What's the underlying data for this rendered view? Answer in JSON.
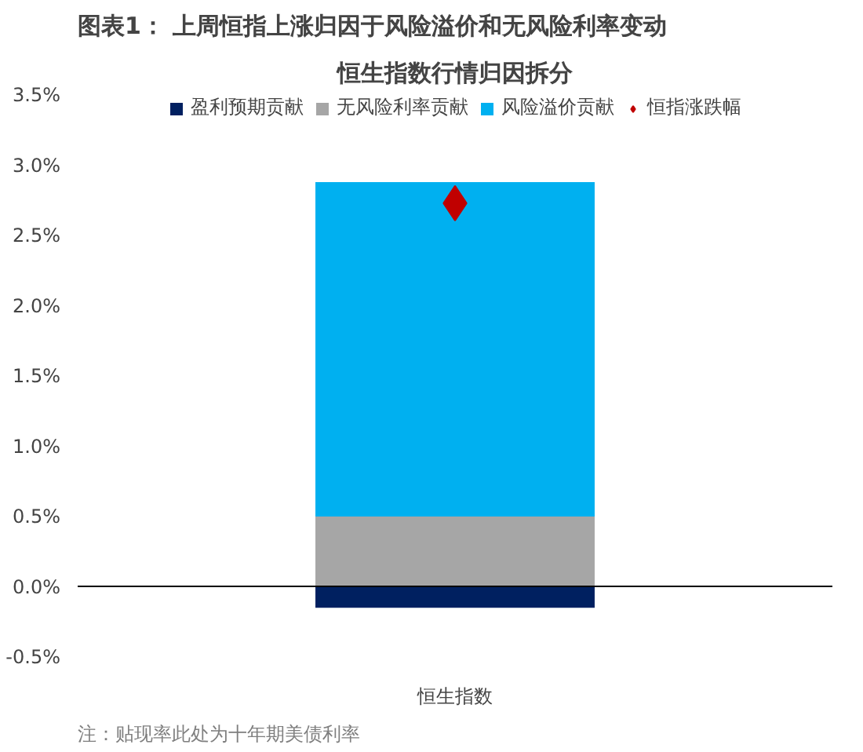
{
  "chart_data": {
    "type": "bar",
    "title": "图表1： 上周恒指上涨归因于风险溢价和无风险利率变动",
    "subtitle": "恒生指数行情归因拆分",
    "categories": [
      "恒生指数"
    ],
    "stacked": true,
    "series": [
      {
        "name": "盈利预期贡献",
        "color": "#002060",
        "values": [
          -0.15
        ]
      },
      {
        "name": "无风险利率贡献",
        "color": "#a6a6a6",
        "values": [
          0.5
        ]
      },
      {
        "name": "风险溢价贡献",
        "color": "#00b0f0",
        "values": [
          2.38
        ]
      },
      {
        "name": "恒指涨跌幅",
        "color": "#c00000",
        "type": "scatter",
        "x": [
          "恒生指数"
        ],
        "values": [
          2.73
        ]
      }
    ],
    "marker": "diamond",
    "ylim": [
      -0.5,
      3.5
    ],
    "yticks": [
      {
        "value": -0.5,
        "label": "-0.5%"
      },
      {
        "value": 0,
        "label": "0.0%"
      },
      {
        "value": 0.5,
        "label": "0.5%"
      },
      {
        "value": 1,
        "label": "1.0%"
      },
      {
        "value": 1.5,
        "label": "1.5%"
      },
      {
        "value": 2,
        "label": "2.0%"
      },
      {
        "value": 2.5,
        "label": "2.5%"
      },
      {
        "value": 3,
        "label": "3.0%"
      },
      {
        "value": 3.5,
        "label": "3.5%"
      }
    ],
    "legend": "top",
    "annotations": [
      "注：贴现率此处为十年期美债利率"
    ]
  }
}
